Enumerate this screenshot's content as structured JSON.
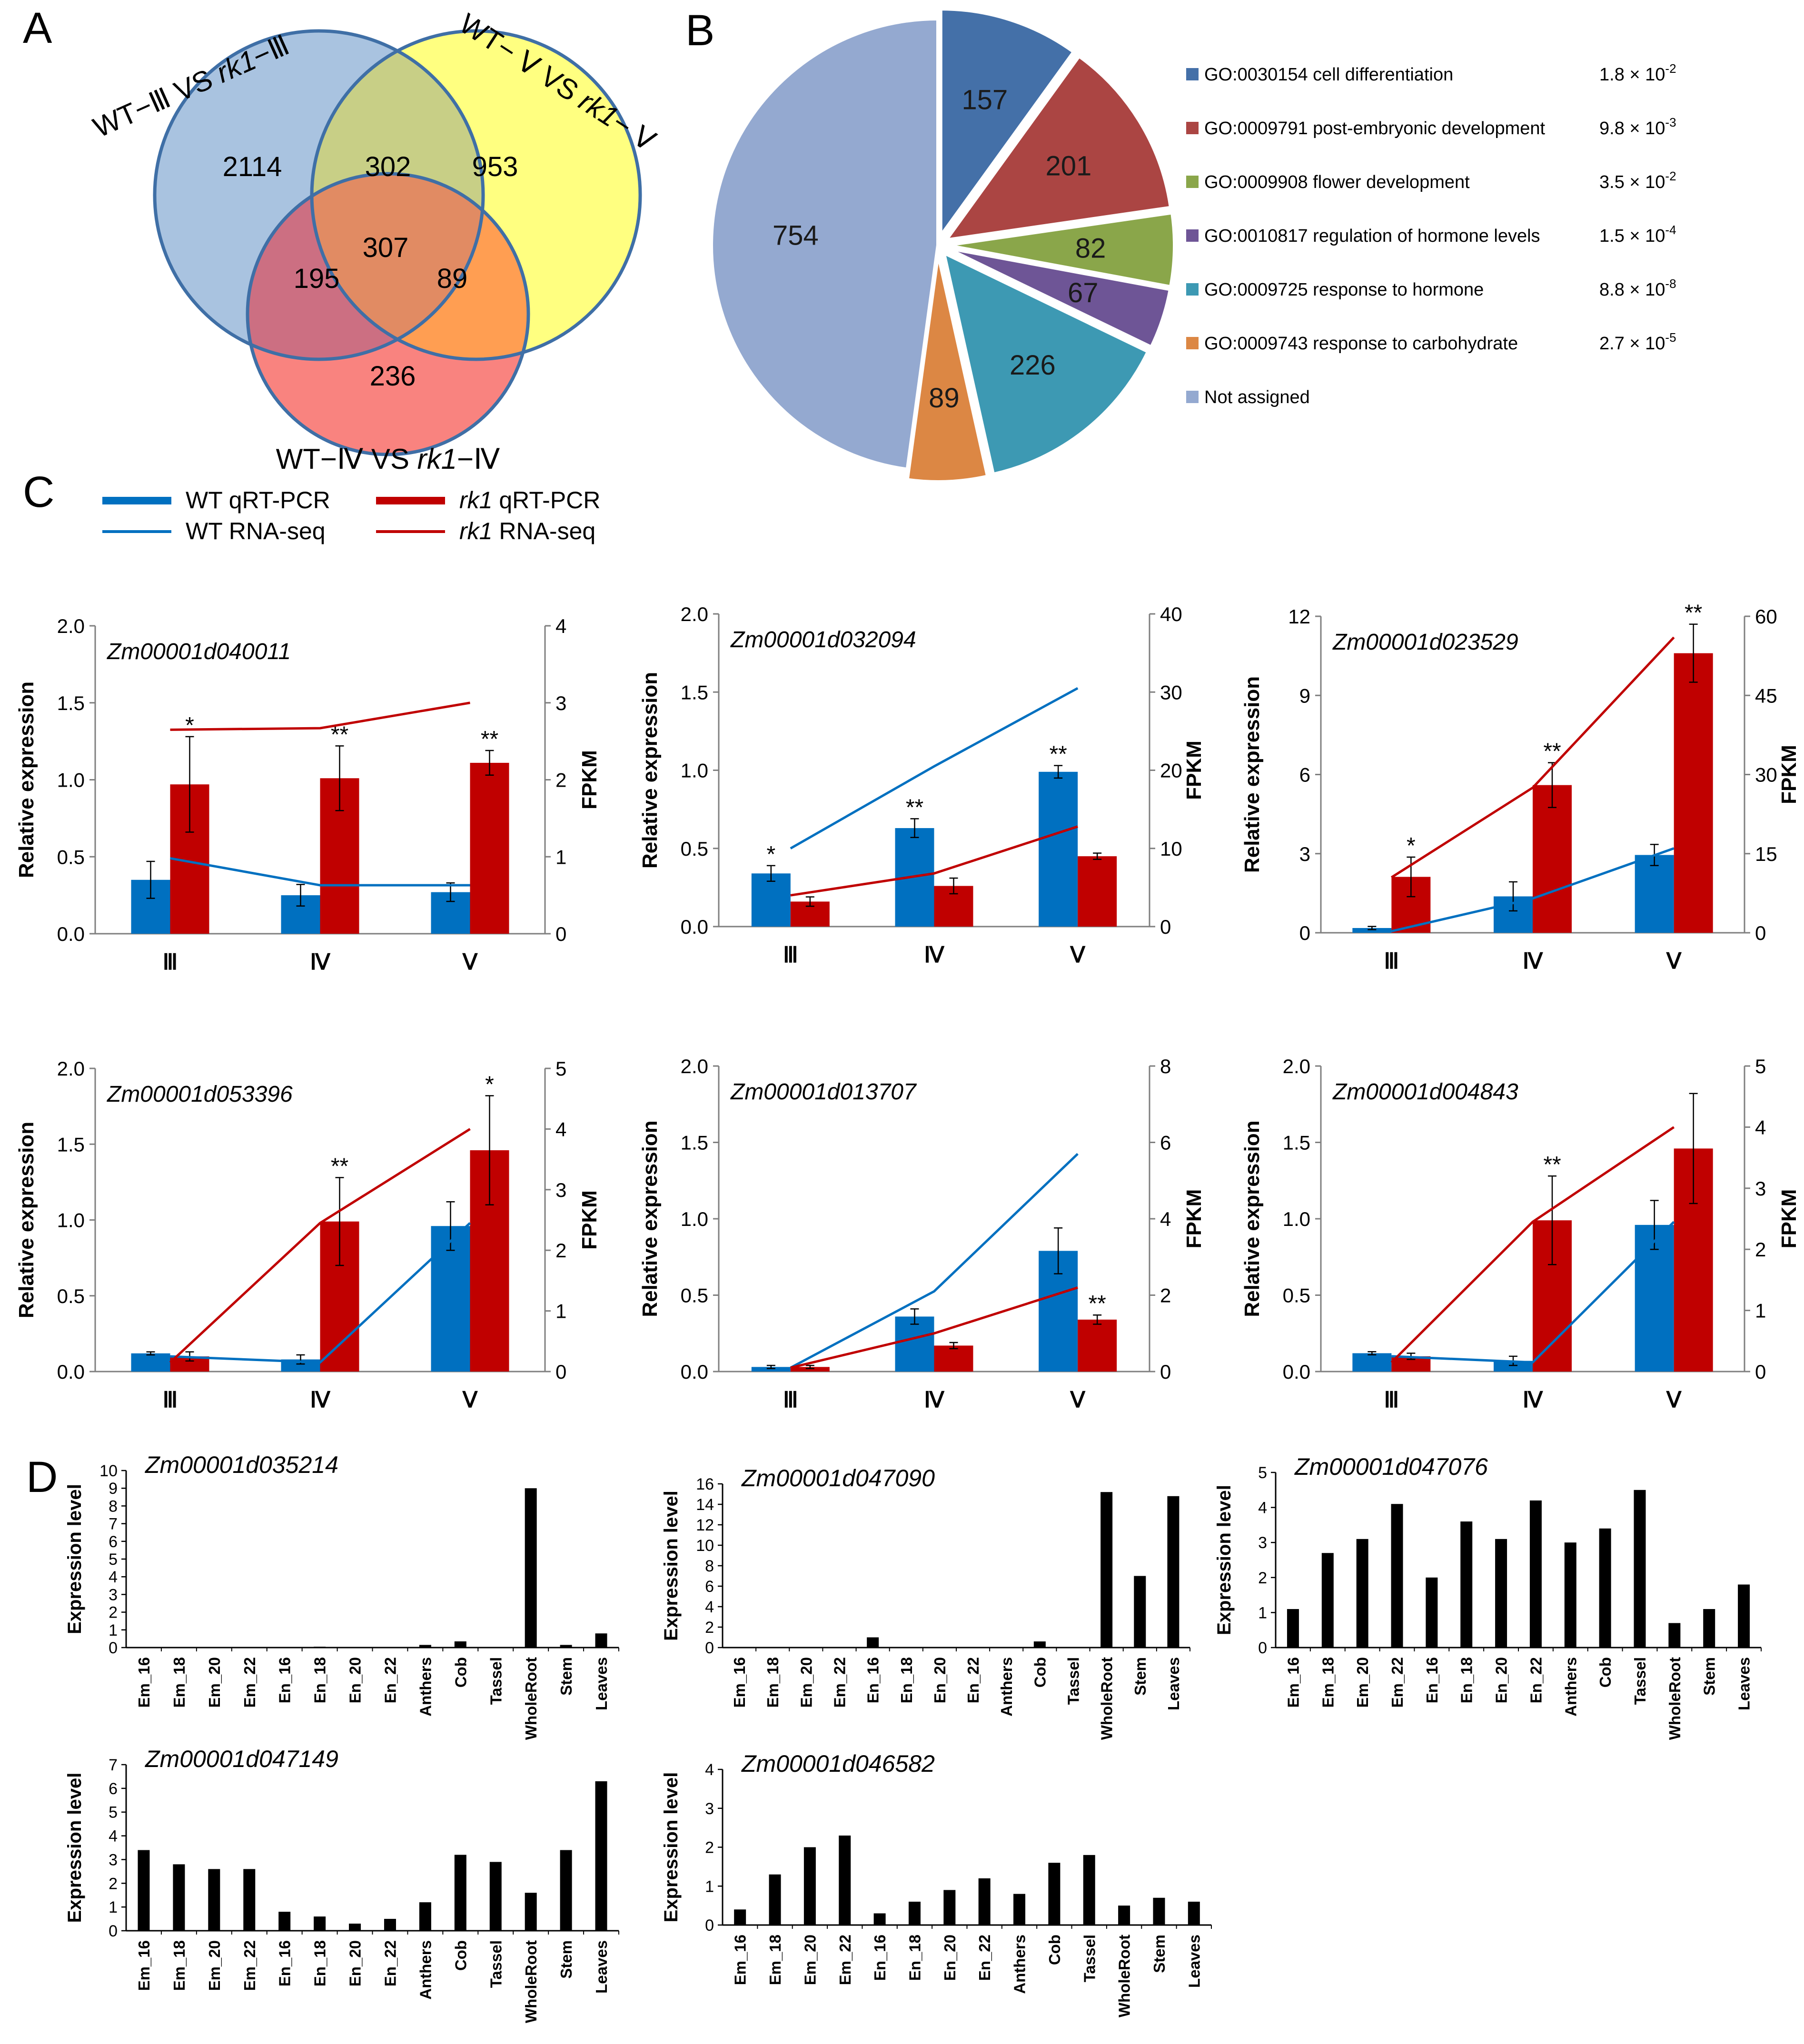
{
  "panel_letters": [
    "A",
    "B",
    "C",
    "D"
  ],
  "colors": {
    "wt_blue": "#0070c0",
    "rk1_red": "#c00000",
    "venn_blue": "#a9c3e0",
    "venn_yellow": "#ffff80",
    "venn_red": "#f9837f",
    "venn_green": "#c8cf86",
    "venn_rose": "#cc6f82",
    "venn_orange": "#ff9e52",
    "venn_center": "#e18b63",
    "venn_outline": "#3f6fa6",
    "black_bar": "#000000"
  },
  "venn": {
    "sets": [
      {
        "label_prefix": "WT−Ⅲ VS ",
        "label_italic": "rk1",
        "label_suffix": "−Ⅲ"
      },
      {
        "label_prefix": "WT− Ⅴ VS ",
        "label_italic": "rk1",
        "label_suffix": "− Ⅴ"
      },
      {
        "label_prefix": "WT−Ⅳ VS ",
        "label_italic": "rk1",
        "label_suffix": "−Ⅳ"
      }
    ],
    "regions": [
      {
        "name": "only-III",
        "value": "2114"
      },
      {
        "name": "III-V",
        "value": "302"
      },
      {
        "name": "only-V",
        "value": "953"
      },
      {
        "name": "III-IV",
        "value": "195"
      },
      {
        "name": "all-three",
        "value": "307"
      },
      {
        "name": "IV-V",
        "value": "89"
      },
      {
        "name": "only-IV",
        "value": "236"
      }
    ]
  },
  "chart_data": [
    {
      "panel": "B",
      "type": "pie",
      "slices": [
        {
          "label": "GO:0030154 cell differentiation",
          "value": 157,
          "pvalue_base": "1.8 × 10",
          "pvalue_exp": "-2",
          "color": "#4470a8"
        },
        {
          "label": "GO:0009791 post-embryonic development",
          "value": 201,
          "pvalue_base": "9.8 × 10",
          "pvalue_exp": "-3",
          "color": "#ab4543"
        },
        {
          "label": "GO:0009908 flower development",
          "value": 82,
          "pvalue_base": "3.5 × 10",
          "pvalue_exp": "-2",
          "color": "#8aa64a"
        },
        {
          "label": "GO:0010817 regulation of hormone levels",
          "value": 67,
          "pvalue_base": "1.5 × 10",
          "pvalue_exp": "-4",
          "color": "#6e5596"
        },
        {
          "label": "GO:0009725 response to hormone",
          "value": 226,
          "pvalue_base": "8.8 × 10",
          "pvalue_exp": "-8",
          "color": "#3d99b3"
        },
        {
          "label": "GO:0009743 response to carbohydrate",
          "value": 89,
          "pvalue_base": "2.7 × 10",
          "pvalue_exp": "-5",
          "color": "#dc8744"
        },
        {
          "label": "Not assigned",
          "value": 754,
          "pvalue_base": "",
          "pvalue_exp": "",
          "color": "#94a9d0"
        }
      ]
    },
    {
      "panel": "C",
      "type": "bar",
      "title": "Zm00001d040011",
      "categories": [
        "Ⅲ",
        "Ⅳ",
        "Ⅴ"
      ],
      "ylabel": "Relative expression",
      "y2label": "FPKM",
      "ylim": [
        0,
        2.0
      ],
      "yticks": [
        0.0,
        0.5,
        1.0,
        1.5,
        2.0
      ],
      "y2lim": [
        0,
        4
      ],
      "y2ticks": [
        0,
        1,
        2,
        3,
        4
      ],
      "series": [
        {
          "name": "WT qRT-PCR",
          "values": [
            0.35,
            0.25,
            0.27
          ],
          "errors": [
            0.12,
            0.07,
            0.06
          ]
        },
        {
          "name": "rk1 qRT-PCR",
          "values": [
            0.97,
            1.01,
            1.11
          ],
          "errors": [
            0.31,
            0.21,
            0.08
          ]
        }
      ],
      "lines": [
        {
          "name": "WT RNA-seq",
          "values": [
            0.98,
            0.63,
            0.63
          ]
        },
        {
          "name": "rk1 RNA-seq",
          "values": [
            2.65,
            2.67,
            3.0
          ]
        }
      ],
      "significance": [
        "*",
        "**",
        "**"
      ],
      "significance_series": [
        "rk1",
        "rk1",
        "rk1"
      ]
    },
    {
      "panel": "C",
      "type": "bar",
      "title": "Zm00001d032094",
      "categories": [
        "Ⅲ",
        "Ⅳ",
        "Ⅴ"
      ],
      "ylabel": "Relative expression",
      "y2label": "FPKM",
      "ylim": [
        0,
        2.0
      ],
      "yticks": [
        0.0,
        0.5,
        1.0,
        1.5,
        2.0
      ],
      "y2lim": [
        0,
        40
      ],
      "y2ticks": [
        0,
        10,
        20,
        30,
        40
      ],
      "series": [
        {
          "name": "WT qRT-PCR",
          "values": [
            0.34,
            0.63,
            0.99
          ],
          "errors": [
            0.05,
            0.06,
            0.04
          ]
        },
        {
          "name": "rk1 qRT-PCR",
          "values": [
            0.16,
            0.26,
            0.45
          ],
          "errors": [
            0.03,
            0.05,
            0.02
          ]
        }
      ],
      "lines": [
        {
          "name": "WT RNA-seq",
          "values": [
            10.0,
            20.5,
            30.5
          ]
        },
        {
          "name": "rk1 RNA-seq",
          "values": [
            4.0,
            6.8,
            12.8
          ]
        }
      ],
      "significance": [
        "*",
        "**",
        "**"
      ],
      "significance_series": [
        "wt",
        "wt",
        "wt"
      ]
    },
    {
      "panel": "C",
      "type": "bar",
      "title": "Zm00001d023529",
      "categories": [
        "Ⅲ",
        "Ⅳ",
        "Ⅴ"
      ],
      "ylabel": "Relative expression",
      "y2label": "FPKM",
      "ylim": [
        0,
        12
      ],
      "yticks": [
        0,
        3,
        6,
        9,
        12
      ],
      "y2lim": [
        0,
        60
      ],
      "y2ticks": [
        0,
        15,
        30,
        45,
        60
      ],
      "series": [
        {
          "name": "WT qRT-PCR",
          "values": [
            0.18,
            1.38,
            2.95
          ],
          "errors": [
            0.06,
            0.55,
            0.4
          ]
        },
        {
          "name": "rk1 qRT-PCR",
          "values": [
            2.12,
            5.6,
            10.6
          ],
          "errors": [
            0.75,
            0.85,
            1.1
          ]
        }
      ],
      "lines": [
        {
          "name": "WT RNA-seq",
          "values": [
            0.3,
            6.5,
            16.0
          ]
        },
        {
          "name": "rk1 RNA-seq",
          "values": [
            10.5,
            27.5,
            56.0
          ]
        }
      ],
      "significance": [
        "*",
        "**",
        "**"
      ],
      "significance_series": [
        "rk1",
        "rk1",
        "rk1"
      ]
    },
    {
      "panel": "C",
      "type": "bar",
      "title": "Zm00001d053396",
      "categories": [
        "Ⅲ",
        "Ⅳ",
        "Ⅴ"
      ],
      "ylabel": "Relative expression",
      "y2label": "FPKM",
      "ylim": [
        0,
        2.0
      ],
      "yticks": [
        0.0,
        0.5,
        1.0,
        1.5,
        2.0
      ],
      "y2lim": [
        0,
        5
      ],
      "y2ticks": [
        0,
        1,
        2,
        3,
        4,
        5
      ],
      "series": [
        {
          "name": "WT qRT-PCR",
          "values": [
            0.12,
            0.08,
            0.96
          ],
          "errors": [
            0.01,
            0.03,
            0.16
          ]
        },
        {
          "name": "rk1 qRT-PCR",
          "values": [
            0.1,
            0.99,
            1.46
          ],
          "errors": [
            0.03,
            0.29,
            0.36
          ]
        }
      ],
      "lines": [
        {
          "name": "WT RNA-seq",
          "values": [
            0.25,
            0.15,
            2.45
          ]
        },
        {
          "name": "rk1 RNA-seq",
          "values": [
            0.15,
            2.45,
            4.0
          ]
        }
      ],
      "significance": [
        "",
        "**",
        "*"
      ],
      "significance_series": [
        "rk1",
        "rk1",
        "rk1"
      ]
    },
    {
      "panel": "C",
      "type": "bar",
      "title": "Zm00001d013707",
      "categories": [
        "Ⅲ",
        "Ⅳ",
        "Ⅴ"
      ],
      "ylabel": "Relative expression",
      "y2label": "FPKM",
      "ylim": [
        0,
        2.0
      ],
      "yticks": [
        0.0,
        0.5,
        1.0,
        1.5,
        2.0
      ],
      "y2lim": [
        0,
        8
      ],
      "y2ticks": [
        0,
        2,
        4,
        6,
        8
      ],
      "series": [
        {
          "name": "WT qRT-PCR",
          "values": [
            0.03,
            0.36,
            0.79
          ],
          "errors": [
            0.01,
            0.05,
            0.15
          ]
        },
        {
          "name": "rk1 qRT-PCR",
          "values": [
            0.03,
            0.17,
            0.34
          ],
          "errors": [
            0.01,
            0.02,
            0.03
          ]
        }
      ],
      "lines": [
        {
          "name": "WT RNA-seq",
          "values": [
            0.1,
            2.1,
            5.7
          ]
        },
        {
          "name": "rk1 RNA-seq",
          "values": [
            0.1,
            1.0,
            2.2
          ]
        }
      ],
      "significance": [
        "",
        "",
        "**"
      ],
      "significance_series": [
        "rk1",
        "rk1",
        "rk1"
      ]
    },
    {
      "panel": "C",
      "type": "bar",
      "title": "Zm00001d004843",
      "categories": [
        "Ⅲ",
        "Ⅳ",
        "Ⅴ"
      ],
      "ylabel": "Relative expression",
      "y2label": "FPKM",
      "ylim": [
        0,
        2.0
      ],
      "yticks": [
        0.0,
        0.5,
        1.0,
        1.5,
        2.0
      ],
      "y2lim": [
        0,
        5
      ],
      "y2ticks": [
        0,
        1,
        2,
        3,
        4,
        5
      ],
      "series": [
        {
          "name": "WT qRT-PCR",
          "values": [
            0.12,
            0.07,
            0.96
          ],
          "errors": [
            0.01,
            0.03,
            0.16
          ]
        },
        {
          "name": "rk1 qRT-PCR",
          "values": [
            0.1,
            0.99,
            1.46
          ],
          "errors": [
            0.02,
            0.29,
            0.36
          ]
        }
      ],
      "lines": [
        {
          "name": "WT RNA-seq",
          "values": [
            0.25,
            0.15,
            2.45
          ]
        },
        {
          "name": "rk1 RNA-seq",
          "values": [
            0.15,
            2.45,
            4.0
          ]
        }
      ],
      "significance": [
        "",
        "**",
        ""
      ],
      "significance_series": [
        "rk1",
        "rk1",
        "rk1"
      ]
    },
    {
      "panel": "D",
      "type": "bar",
      "title": "Zm00001d035214",
      "ylabel": "Expression level",
      "categories": [
        "Em_16",
        "Em_18",
        "Em_20",
        "Em_22",
        "En_16",
        "En_18",
        "En_20",
        "En_22",
        "Anthers",
        "Cob",
        "Tassel",
        "WholeRoot",
        "Stem",
        "Leaves"
      ],
      "values": [
        0,
        0,
        0,
        0,
        0,
        0.05,
        0,
        0,
        0.15,
        0.35,
        0,
        9.0,
        0.15,
        0.8
      ],
      "ylim": [
        0,
        10
      ],
      "yticks": [
        0,
        1,
        2,
        3,
        4,
        5,
        6,
        7,
        8,
        9,
        10
      ]
    },
    {
      "panel": "D",
      "type": "bar",
      "title": "Zm00001d047090",
      "ylabel": "Expression level",
      "categories": [
        "Em_16",
        "Em_18",
        "Em_20",
        "Em_22",
        "En_16",
        "En_18",
        "En_20",
        "En_22",
        "Anthers",
        "Cob",
        "Tassel",
        "WholeRoot",
        "Stem",
        "Leaves"
      ],
      "values": [
        0,
        0,
        0,
        0,
        1.0,
        0,
        0.05,
        0,
        0,
        0.6,
        0,
        15.2,
        7.0,
        14.8
      ],
      "ylim": [
        0,
        16
      ],
      "yticks": [
        0,
        2,
        4,
        6,
        8,
        10,
        12,
        14,
        16
      ]
    },
    {
      "panel": "D",
      "type": "bar",
      "title": "Zm00001d047076",
      "ylabel": "Expression level",
      "categories": [
        "Em_16",
        "Em_18",
        "Em_20",
        "Em_22",
        "En_16",
        "En_18",
        "En_20",
        "En_22",
        "Anthers",
        "Cob",
        "Tassel",
        "WholeRoot",
        "Stem",
        "Leaves"
      ],
      "values": [
        1.1,
        2.7,
        3.1,
        4.1,
        2.0,
        3.6,
        3.1,
        4.2,
        3.0,
        3.4,
        4.5,
        0.7,
        1.1,
        1.8
      ],
      "ylim": [
        0,
        5
      ],
      "yticks": [
        0,
        1,
        2,
        3,
        4,
        5
      ]
    },
    {
      "panel": "D",
      "type": "bar",
      "title": "Zm00001d047149",
      "ylabel": "Expression level",
      "categories": [
        "Em_16",
        "Em_18",
        "Em_20",
        "Em_22",
        "En_16",
        "En_18",
        "En_20",
        "En_22",
        "Anthers",
        "Cob",
        "Tassel",
        "WholeRoot",
        "Stem",
        "Leaves"
      ],
      "values": [
        3.4,
        2.8,
        2.6,
        2.6,
        0.8,
        0.6,
        0.3,
        0.5,
        1.2,
        3.2,
        2.9,
        1.6,
        3.4,
        6.3
      ],
      "ylim": [
        0,
        7
      ],
      "yticks": [
        0,
        1,
        2,
        3,
        4,
        5,
        6,
        7
      ]
    },
    {
      "panel": "D",
      "type": "bar",
      "title": "Zm00001d046582",
      "ylabel": "Expression level",
      "categories": [
        "Em_16",
        "Em_18",
        "Em_20",
        "Em_22",
        "En_16",
        "En_18",
        "En_20",
        "En_22",
        "Anthers",
        "Cob",
        "Tassel",
        "WholeRoot",
        "Stem",
        "Leaves"
      ],
      "values": [
        0.4,
        1.3,
        2.0,
        2.3,
        0.3,
        0.6,
        0.9,
        1.2,
        0.8,
        1.6,
        1.8,
        0.5,
        0.7,
        0.6
      ],
      "ylim": [
        0,
        4
      ],
      "yticks": [
        0,
        1,
        2,
        3,
        4
      ]
    }
  ],
  "legend_c": [
    {
      "name": "WT qRT-PCR",
      "text_prefix": "WT qRT-PCR",
      "text_italic": "",
      "text_suffix": "",
      "kind": "bar",
      "color": "#0070c0"
    },
    {
      "name": "WT RNA-seq",
      "text_prefix": "WT  RNA-seq",
      "text_italic": "",
      "text_suffix": "",
      "kind": "line",
      "color": "#0070c0"
    },
    {
      "name": "rk1 qRT-PCR",
      "text_prefix": "",
      "text_italic": "rk1",
      "text_suffix": " qRT-PCR",
      "kind": "bar",
      "color": "#c00000"
    },
    {
      "name": "rk1 RNA-seq",
      "text_prefix": "",
      "text_italic": "rk1",
      "text_suffix": "  RNA-seq",
      "kind": "line",
      "color": "#c00000"
    }
  ]
}
